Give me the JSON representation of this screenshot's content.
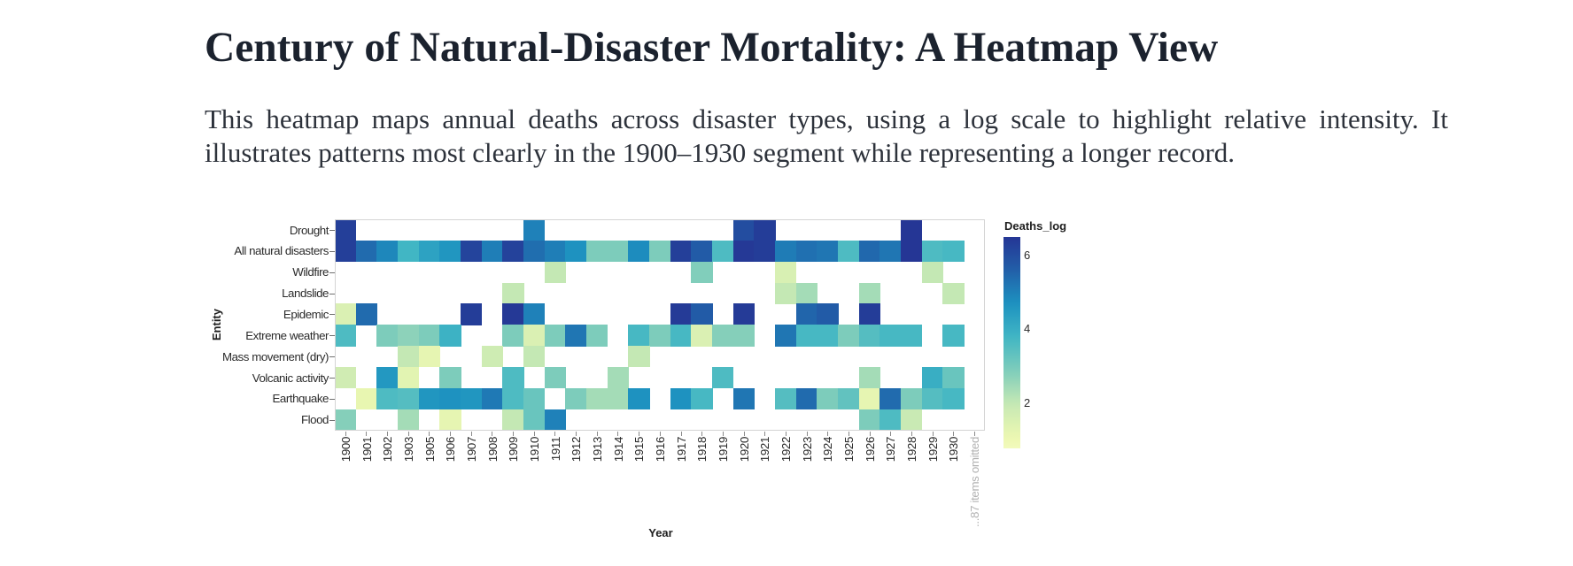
{
  "header": {
    "title": "Century of Natural-Disaster Mortality: A Heatmap View"
  },
  "intro": {
    "line1": "This heatmap maps annual deaths across disaster types, using a log scale to highlight relative intensity. It",
    "line2": "illustrates patterns most clearly in the 1900–1930 segment while representing a longer record."
  },
  "chart_data": {
    "type": "heatmap",
    "xlabel": "Year",
    "ylabel": "Entity",
    "legend_title": "Deaths_log",
    "x_note": "...87 items omitted",
    "x": [
      "1900",
      "1901",
      "1902",
      "1903",
      "1905",
      "1906",
      "1907",
      "1908",
      "1909",
      "1910",
      "1911",
      "1912",
      "1913",
      "1914",
      "1915",
      "1916",
      "1917",
      "1918",
      "1919",
      "1920",
      "1921",
      "1922",
      "1923",
      "1924",
      "1925",
      "1926",
      "1927",
      "1928",
      "1929",
      "1930"
    ],
    "y": [
      "Drought",
      "All natural disasters",
      "Wildfire",
      "Landslide",
      "Epidemic",
      "Extreme weather",
      "Mass movement (dry)",
      "Volcanic activity",
      "Earthquake",
      "Flood"
    ],
    "values": [
      [
        6.3,
        null,
        null,
        null,
        null,
        null,
        null,
        null,
        null,
        5.0,
        null,
        null,
        null,
        null,
        null,
        null,
        null,
        null,
        null,
        6.0,
        6.35,
        null,
        null,
        null,
        null,
        null,
        null,
        6.5,
        null,
        null
      ],
      [
        6.3,
        5.4,
        4.9,
        3.8,
        4.3,
        4.6,
        6.2,
        5.05,
        6.25,
        5.35,
        5.05,
        4.7,
        2.9,
        2.9,
        4.8,
        2.9,
        6.3,
        5.7,
        3.6,
        6.45,
        6.35,
        5.1,
        5.3,
        5.2,
        3.6,
        5.45,
        5.2,
        6.5,
        3.6,
        3.7
      ],
      [
        null,
        null,
        null,
        null,
        null,
        null,
        null,
        null,
        null,
        null,
        2.0,
        null,
        null,
        null,
        null,
        null,
        null,
        2.85,
        null,
        null,
        null,
        1.55,
        null,
        null,
        null,
        null,
        null,
        null,
        2.0,
        null
      ],
      [
        null,
        null,
        null,
        null,
        null,
        null,
        null,
        null,
        2.0,
        null,
        null,
        null,
        null,
        null,
        null,
        null,
        null,
        null,
        null,
        null,
        null,
        2.0,
        2.4,
        null,
        null,
        2.4,
        null,
        null,
        null,
        2.0
      ],
      [
        1.5,
        5.4,
        null,
        null,
        null,
        null,
        6.35,
        null,
        6.45,
        5.0,
        null,
        null,
        null,
        null,
        null,
        null,
        6.4,
        5.7,
        null,
        6.4,
        null,
        null,
        5.5,
        5.7,
        null,
        6.35,
        null,
        null,
        null,
        null
      ],
      [
        3.6,
        null,
        2.9,
        2.7,
        2.9,
        3.9,
        null,
        null,
        2.9,
        1.5,
        2.9,
        5.2,
        2.9,
        null,
        3.7,
        2.9,
        3.7,
        1.5,
        2.8,
        2.8,
        null,
        5.2,
        3.7,
        3.7,
        2.9,
        3.5,
        3.7,
        3.7,
        null,
        3.7
      ],
      [
        null,
        null,
        null,
        2.0,
        1.2,
        null,
        null,
        1.8,
        null,
        2.0,
        null,
        null,
        null,
        null,
        2.0,
        null,
        null,
        null,
        null,
        null,
        null,
        null,
        null,
        null,
        null,
        null,
        null,
        null,
        null,
        null
      ],
      [
        1.75,
        null,
        4.55,
        1.3,
        null,
        2.9,
        null,
        null,
        3.6,
        null,
        2.9,
        null,
        null,
        2.4,
        null,
        null,
        null,
        null,
        3.6,
        null,
        null,
        null,
        null,
        null,
        null,
        2.4,
        null,
        null,
        4.0,
        3.2
      ],
      [
        null,
        1.15,
        3.6,
        3.5,
        4.6,
        4.7,
        4.6,
        5.15,
        3.6,
        3.2,
        null,
        2.9,
        2.4,
        2.4,
        4.7,
        null,
        4.7,
        3.7,
        null,
        5.2,
        null,
        3.5,
        5.4,
        2.9,
        3.3,
        1.2,
        5.4,
        2.9,
        3.5,
        3.7
      ],
      [
        2.8,
        null,
        null,
        2.4,
        null,
        1.2,
        null,
        null,
        2.0,
        3.2,
        5.0,
        null,
        null,
        null,
        null,
        null,
        null,
        null,
        null,
        null,
        null,
        null,
        null,
        null,
        null,
        2.9,
        3.6,
        1.9,
        null,
        null
      ]
    ],
    "value_meaning": "log10 of annual deaths",
    "legend_ticks": [
      6,
      4,
      2
    ],
    "legend_domain": [
      0.77,
      6.51
    ],
    "colormap": {
      "name": "YlGnBu (reversed, dark = high)",
      "stops": [
        "#ffffd9",
        "#edf8b1",
        "#c7e9b4",
        "#7fcdbb",
        "#41b6c4",
        "#1d91c0",
        "#225ea8",
        "#253494",
        "#081d58"
      ],
      "map_offset": 0.12,
      "map_scale": 7.35
    }
  }
}
